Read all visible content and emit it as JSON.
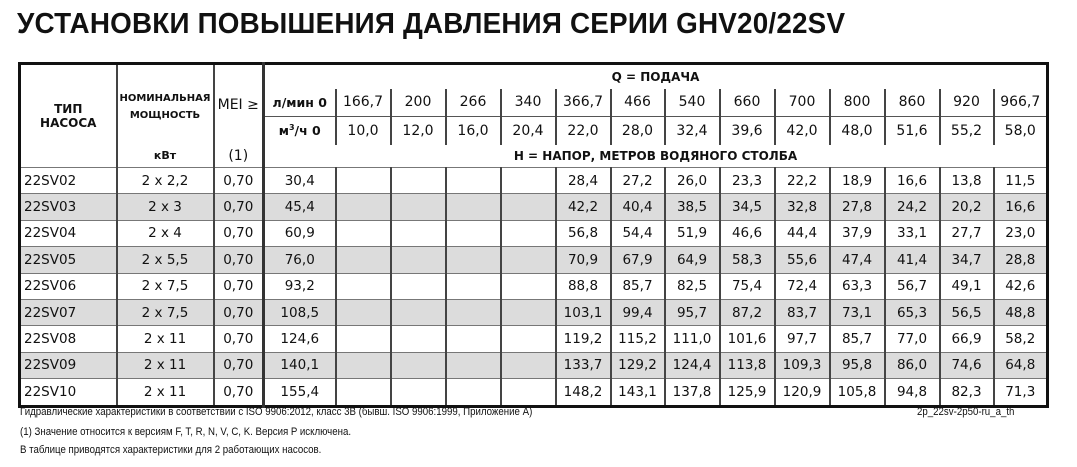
{
  "title": "УСТАНОВКИ ПОВЫШЕНИЯ ДАВЛЕНИЯ СЕРИИ GHV20/22SV",
  "header": {
    "type": [
      "ТИП",
      "НАСОСА"
    ],
    "power": [
      "НОМИНАЛЬНАЯ",
      "МОЩНОСТЬ"
    ],
    "power_unit": "кВт",
    "mei": "MEI ≥",
    "mei_note": "(1)",
    "q_label": "Q = ПОДАЧА",
    "lmin_label": "л/мин 0",
    "m3h_label_pre": "м",
    "m3h_label_sup": "3",
    "m3h_label_post": "/ч 0",
    "h_label": "H = НАПОР, МЕТРОВ ВОДЯНОГО СТОЛБА",
    "lmin": [
      "166,7",
      "200",
      "266",
      "340",
      "366,7",
      "466",
      "540",
      "660",
      "700",
      "800",
      "860",
      "920",
      "966,7"
    ],
    "m3h": [
      "10,0",
      "12,0",
      "16,0",
      "20,4",
      "22,0",
      "28,0",
      "32,4",
      "39,6",
      "42,0",
      "48,0",
      "51,6",
      "55,2",
      "58,0"
    ]
  },
  "rows": [
    {
      "type": "22SV02",
      "power": "2 x 2,2",
      "mei": "0,70",
      "h0": "30,4",
      "h": [
        "",
        "",
        "",
        "",
        "28,4",
        "27,2",
        "26,0",
        "23,3",
        "22,2",
        "18,9",
        "16,6",
        "13,8",
        "11,5"
      ]
    },
    {
      "type": "22SV03",
      "power": "2 x 3",
      "mei": "0,70",
      "h0": "45,4",
      "h": [
        "",
        "",
        "",
        "",
        "42,2",
        "40,4",
        "38,5",
        "34,5",
        "32,8",
        "27,8",
        "24,2",
        "20,2",
        "16,6"
      ]
    },
    {
      "type": "22SV04",
      "power": "2 x 4",
      "mei": "0,70",
      "h0": "60,9",
      "h": [
        "",
        "",
        "",
        "",
        "56,8",
        "54,4",
        "51,9",
        "46,6",
        "44,4",
        "37,9",
        "33,1",
        "27,7",
        "23,0"
      ]
    },
    {
      "type": "22SV05",
      "power": "2 x 5,5",
      "mei": "0,70",
      "h0": "76,0",
      "h": [
        "",
        "",
        "",
        "",
        "70,9",
        "67,9",
        "64,9",
        "58,3",
        "55,6",
        "47,4",
        "41,4",
        "34,7",
        "28,8"
      ]
    },
    {
      "type": "22SV06",
      "power": "2 x 7,5",
      "mei": "0,70",
      "h0": "93,2",
      "h": [
        "",
        "",
        "",
        "",
        "88,8",
        "85,7",
        "82,5",
        "75,4",
        "72,4",
        "63,3",
        "56,7",
        "49,1",
        "42,6"
      ]
    },
    {
      "type": "22SV07",
      "power": "2 x 7,5",
      "mei": "0,70",
      "h0": "108,5",
      "h": [
        "",
        "",
        "",
        "",
        "103,1",
        "99,4",
        "95,7",
        "87,2",
        "83,7",
        "73,1",
        "65,3",
        "56,5",
        "48,8"
      ]
    },
    {
      "type": "22SV08",
      "power": "2 x 11",
      "mei": "0,70",
      "h0": "124,6",
      "h": [
        "",
        "",
        "",
        "",
        "119,2",
        "115,2",
        "111,0",
        "101,6",
        "97,7",
        "85,7",
        "77,0",
        "66,9",
        "58,2"
      ]
    },
    {
      "type": "22SV09",
      "power": "2 x 11",
      "mei": "0,70",
      "h0": "140,1",
      "h": [
        "",
        "",
        "",
        "",
        "133,7",
        "129,2",
        "124,4",
        "113,8",
        "109,3",
        "95,8",
        "86,0",
        "74,6",
        "64,8"
      ]
    },
    {
      "type": "22SV10",
      "power": "2 x 11",
      "mei": "0,70",
      "h0": "155,4",
      "h": [
        "",
        "",
        "",
        "",
        "148,2",
        "143,1",
        "137,8",
        "125,9",
        "120,9",
        "105,8",
        "94,8",
        "82,3",
        "71,3"
      ]
    }
  ],
  "footer": {
    "line1": "Гидравлические характеристики в соответствии с ISO 9906:2012, класс 3B (бывш. ISO 9906:1999, Приложение A)",
    "code": "2p_22sv-2p50-ru_a_th",
    "line2": "(1) Значение относится к версиям F, T, R, N, V, C, K. Версия P исключена.",
    "line3": "В таблице приводятся характеристики для 2 работающих насосов."
  },
  "colors": {
    "row_alt": "#dcdcdc",
    "border": "#111111"
  }
}
